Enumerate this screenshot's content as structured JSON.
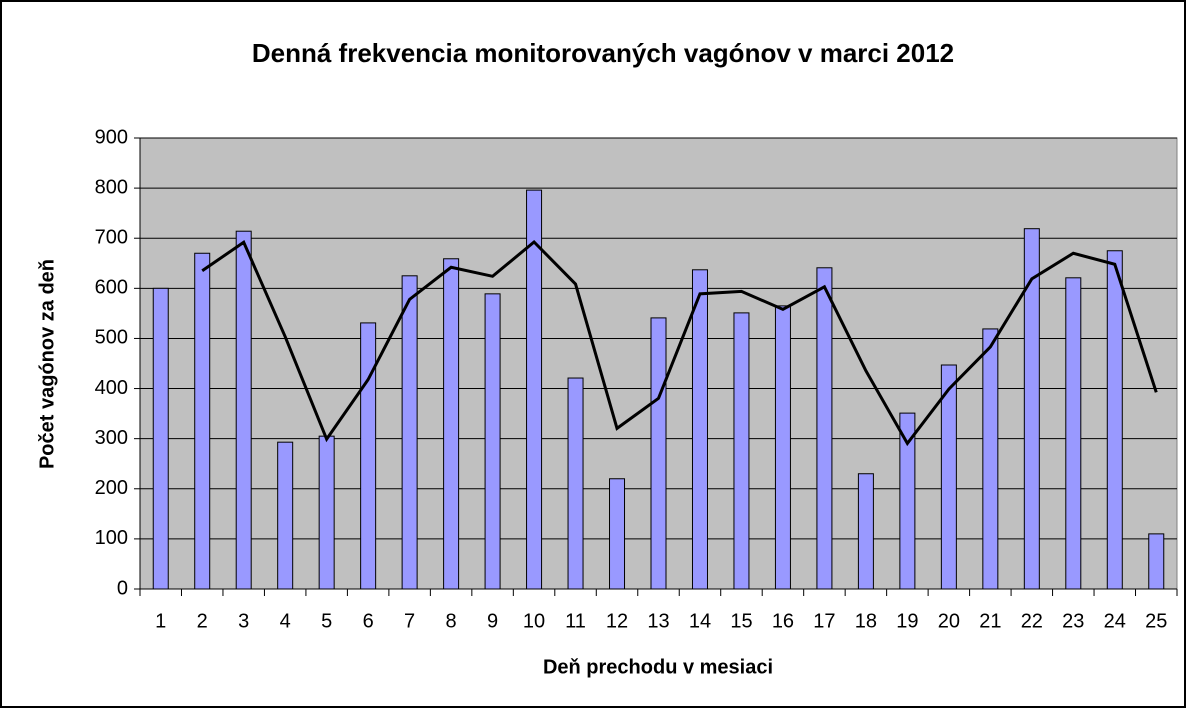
{
  "chart_data": {
    "type": "bar",
    "title": "Denná frekvencia monitorovaných vagónov v marci 2012",
    "x_label": "Deň prechodu v mesiaci",
    "y_label": "Počet vagónov za deň",
    "categories": [
      "1",
      "2",
      "3",
      "4",
      "5",
      "6",
      "7",
      "8",
      "9",
      "10",
      "11",
      "12",
      "13",
      "14",
      "15",
      "16",
      "17",
      "18",
      "19",
      "20",
      "21",
      "22",
      "23",
      "24",
      "25"
    ],
    "series": [
      {
        "type": "bar",
        "color": "#9999ff",
        "values": [
          600,
          670,
          714,
          293,
          305,
          531,
          625,
          659,
          589,
          796,
          421,
          220,
          541,
          637,
          551,
          565,
          641,
          230,
          351,
          447,
          519,
          719,
          621,
          675,
          110
        ]
      },
      {
        "type": "line",
        "color": "#000000",
        "values": [
          null,
          635,
          692,
          503.5,
          299,
          418,
          578,
          642,
          624,
          692.5,
          608.5,
          320.5,
          380.5,
          589,
          594,
          558,
          603,
          435.5,
          290.5,
          399,
          483,
          619,
          670,
          648,
          392.5
        ]
      }
    ],
    "ylim": [
      0,
      900
    ],
    "yticks": [
      0,
      100,
      200,
      300,
      400,
      500,
      600,
      700,
      800,
      900
    ],
    "grid": true
  }
}
